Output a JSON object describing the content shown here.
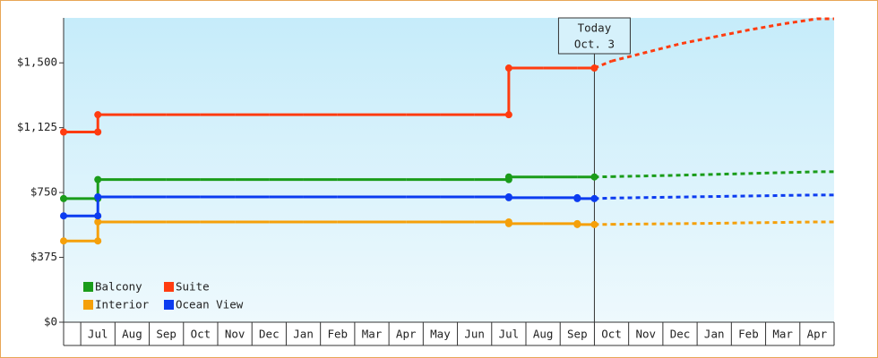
{
  "chart_data": {
    "type": "step",
    "categories": [
      null,
      "Jul",
      "Aug",
      "Sep",
      "Oct",
      "Nov",
      "Dec",
      "Jan",
      "Feb",
      "Mar",
      "Apr",
      "May",
      "Jun",
      "Jul",
      "Aug",
      "Sep",
      "Oct",
      "Nov",
      "Dec",
      "Jan",
      "Feb",
      "Mar",
      "Apr"
    ],
    "ylim": [
      0,
      1760
    ],
    "yticks": [
      {
        "value": 0,
        "label": "$0"
      },
      {
        "value": 375,
        "label": "$375"
      },
      {
        "value": 750,
        "label": "$750"
      },
      {
        "value": 1125,
        "label": "$1,125"
      },
      {
        "value": 1500,
        "label": "$1,500"
      }
    ],
    "annotation": {
      "title": "Today",
      "date": "Oct. 3"
    },
    "legend": "lower left",
    "series": [
      {
        "name": "Balcony",
        "color": "#1a9c1a",
        "values": [
          715,
          825,
          825,
          825,
          825,
          825,
          825,
          825,
          825,
          825,
          825,
          825,
          825,
          840,
          840,
          840,
          null,
          null,
          null,
          null,
          null,
          null,
          null
        ],
        "forecast": [
          null,
          null,
          null,
          null,
          null,
          null,
          null,
          null,
          null,
          null,
          null,
          null,
          null,
          null,
          null,
          null,
          842,
          846,
          850,
          855,
          860,
          865,
          870
        ]
      },
      {
        "name": "Suite",
        "color": "#ff3c10",
        "values": [
          1100,
          1200,
          1200,
          1200,
          1200,
          1200,
          1200,
          1200,
          1200,
          1200,
          1200,
          1200,
          1200,
          1470,
          1470,
          1470,
          null,
          null,
          null,
          null,
          null,
          null,
          null
        ],
        "forecast": [
          null,
          null,
          null,
          null,
          null,
          null,
          null,
          null,
          null,
          null,
          null,
          null,
          null,
          null,
          null,
          null,
          1510,
          1560,
          1610,
          1650,
          1690,
          1725,
          1755
        ]
      },
      {
        "name": "Interior",
        "color": "#f5a00a",
        "values": [
          470,
          580,
          580,
          580,
          580,
          580,
          580,
          580,
          580,
          580,
          580,
          580,
          580,
          570,
          570,
          565,
          null,
          null,
          null,
          null,
          null,
          null,
          null
        ],
        "forecast": [
          null,
          null,
          null,
          null,
          null,
          null,
          null,
          null,
          null,
          null,
          null,
          null,
          null,
          null,
          null,
          null,
          566,
          568,
          570,
          572,
          575,
          577,
          580
        ]
      },
      {
        "name": "Ocean View",
        "color": "#0c3cf0",
        "values": [
          615,
          725,
          725,
          725,
          725,
          725,
          725,
          725,
          725,
          725,
          725,
          725,
          725,
          720,
          720,
          715,
          null,
          null,
          null,
          null,
          null,
          null,
          null
        ],
        "forecast": [
          null,
          null,
          null,
          null,
          null,
          null,
          null,
          null,
          null,
          null,
          null,
          null,
          null,
          null,
          null,
          null,
          718,
          721,
          724,
          727,
          730,
          733,
          736
        ]
      }
    ]
  }
}
